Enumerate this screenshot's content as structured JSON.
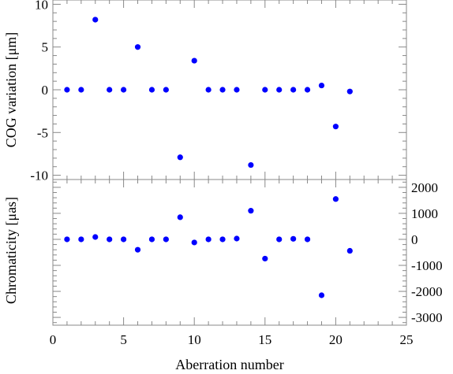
{
  "chart_data": [
    {
      "type": "scatter",
      "name": "top-panel",
      "xlabel": "",
      "ylabel": "COG variation [μm]",
      "xlim": [
        0,
        25
      ],
      "ylim": [
        -10.5,
        10.5
      ],
      "yticks": [
        -10,
        -5,
        0,
        5,
        10
      ],
      "ytick_labels": [
        "-10",
        "-5",
        "0",
        "5",
        "10"
      ],
      "marker_color": "#0000ff",
      "series": [
        {
          "x": [
            1,
            2,
            3,
            4,
            5,
            6,
            7,
            8,
            9,
            10,
            11,
            12,
            13,
            14,
            15,
            16,
            17,
            18,
            19,
            20,
            21
          ],
          "y": [
            0,
            0,
            8.2,
            0,
            0,
            5.0,
            0,
            0,
            -7.9,
            3.4,
            0,
            0,
            0,
            -8.8,
            0,
            0,
            0,
            0,
            0.5,
            -4.3,
            -0.2
          ]
        }
      ]
    },
    {
      "type": "scatter",
      "name": "bottom-panel",
      "xlabel": "Aberration number",
      "ylabel": "Chromaticity [μas]",
      "y2label": "",
      "xlim": [
        0,
        25
      ],
      "ylim": [
        -3300,
        2300
      ],
      "xticks": [
        0,
        5,
        10,
        15,
        20,
        25
      ],
      "xtick_labels": [
        "0",
        "5",
        "10",
        "15",
        "20",
        "25"
      ],
      "yticks": [
        -3000,
        -2000,
        -1000,
        0,
        1000,
        2000
      ],
      "ytick_labels": [
        "-3000",
        "-2000",
        "-1000",
        "0",
        "1000",
        "2000"
      ],
      "ytick_side": "right",
      "marker_color": "#0000ff",
      "series": [
        {
          "x": [
            1,
            2,
            3,
            4,
            5,
            6,
            7,
            8,
            9,
            10,
            11,
            12,
            13,
            14,
            15,
            16,
            17,
            18,
            19,
            20,
            21
          ],
          "y": [
            0,
            0,
            90,
            0,
            0,
            -400,
            0,
            0,
            850,
            -120,
            0,
            0,
            30,
            1100,
            -740,
            0,
            20,
            0,
            -2150,
            1550,
            -440
          ]
        }
      ]
    }
  ]
}
